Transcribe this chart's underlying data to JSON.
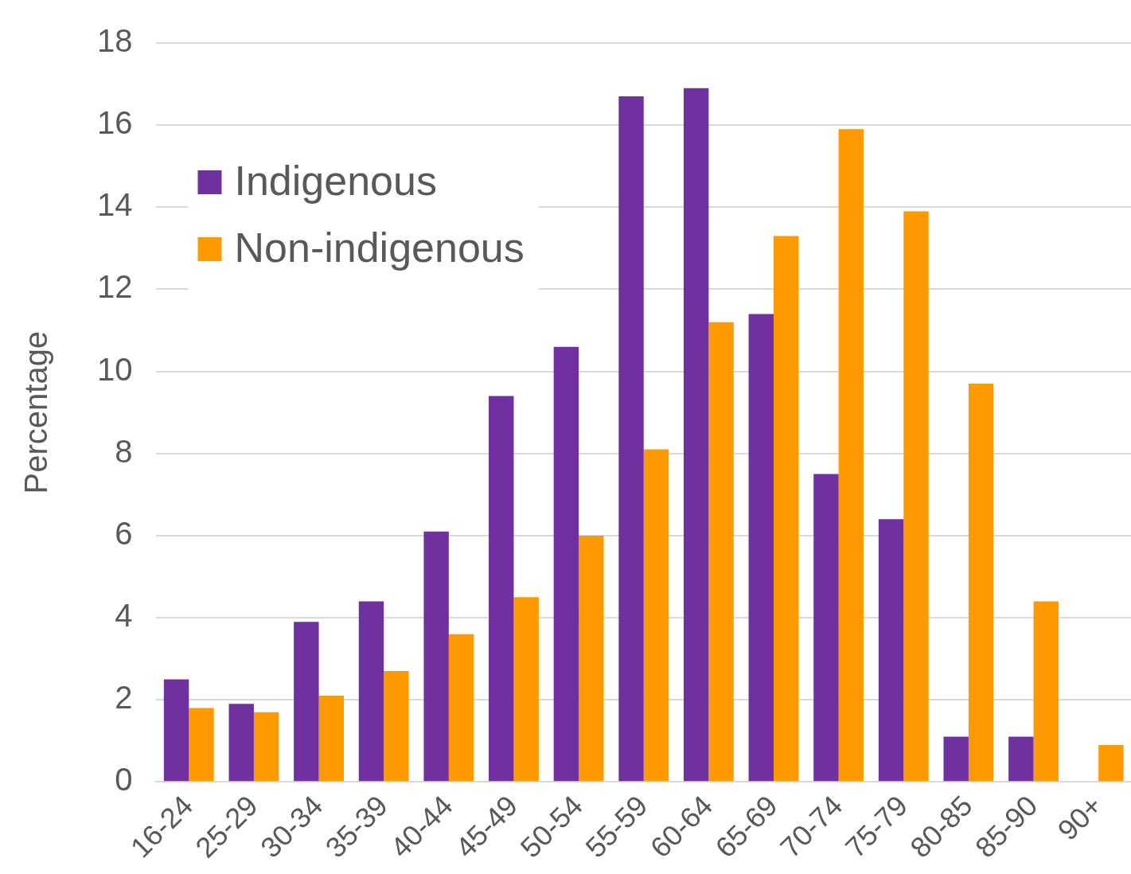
{
  "chart_data": {
    "type": "bar",
    "ylabel": "Percentage",
    "categories": [
      "16-24",
      "25-29",
      "30-34",
      "35-39",
      "40-44",
      "45-49",
      "50-54",
      "55-59",
      "60-64",
      "65-69",
      "70-74",
      "75-79",
      "80-85",
      "85-90",
      "90+"
    ],
    "series": [
      {
        "name": "Indigenous",
        "color": "#7030a0",
        "values": [
          2.5,
          1.9,
          3.9,
          4.4,
          6.1,
          9.4,
          10.6,
          16.7,
          16.9,
          11.4,
          7.5,
          6.4,
          1.1,
          1.1,
          0
        ]
      },
      {
        "name": "Non-indigenous",
        "color": "#ff9900",
        "values": [
          1.8,
          1.7,
          2.1,
          2.7,
          3.6,
          4.5,
          6.0,
          8.1,
          11.2,
          13.3,
          15.9,
          13.9,
          9.7,
          4.4,
          0.9
        ]
      }
    ],
    "ylim": [
      0,
      18
    ],
    "yticks": [
      0,
      2,
      4,
      6,
      8,
      10,
      12,
      14,
      16,
      18
    ],
    "grid": "y",
    "legend": "top left"
  }
}
